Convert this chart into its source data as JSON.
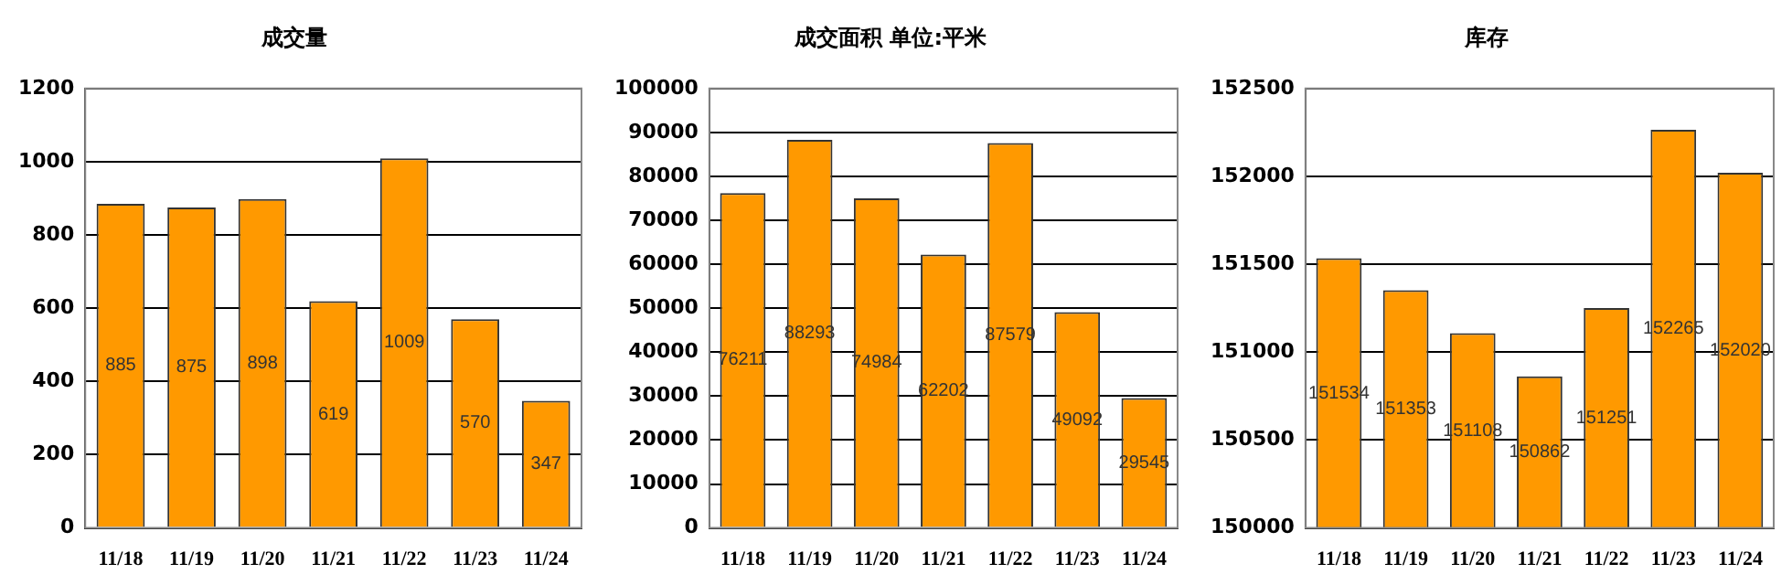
{
  "chart_data": [
    {
      "type": "bar",
      "title": "成交量",
      "categories": [
        "11/18",
        "11/19",
        "11/20",
        "11/21",
        "11/22",
        "11/23",
        "11/24"
      ],
      "values": [
        885,
        875,
        898,
        619,
        1009,
        570,
        347
      ],
      "color": "#ff9900",
      "ylim": [
        0,
        1200
      ],
      "yticks": [
        0,
        200,
        400,
        600,
        800,
        1000,
        1200
      ],
      "grid": "y",
      "data_labels": true
    },
    {
      "type": "bar",
      "title": "成交面积 单位:平米",
      "categories": [
        "11/18",
        "11/19",
        "11/20",
        "11/21",
        "11/22",
        "11/23",
        "11/24"
      ],
      "values": [
        76211,
        88293,
        74984,
        62202,
        87579,
        49092,
        29545
      ],
      "color": "#ff9900",
      "ylim": [
        0,
        100000
      ],
      "yticks": [
        0,
        10000,
        20000,
        30000,
        40000,
        50000,
        60000,
        70000,
        80000,
        90000,
        100000
      ],
      "grid": "y",
      "data_labels": true
    },
    {
      "type": "bar",
      "title": "库存",
      "categories": [
        "11/18",
        "11/19",
        "11/20",
        "11/21",
        "11/22",
        "11/23",
        "11/24"
      ],
      "values": [
        151534,
        151353,
        151108,
        150862,
        151251,
        152265,
        152020
      ],
      "color": "#ff9900",
      "ylim": [
        150000,
        152500
      ],
      "yticks": [
        150000,
        150500,
        151000,
        151500,
        152000,
        152500
      ],
      "grid": "y",
      "data_labels": true
    }
  ]
}
